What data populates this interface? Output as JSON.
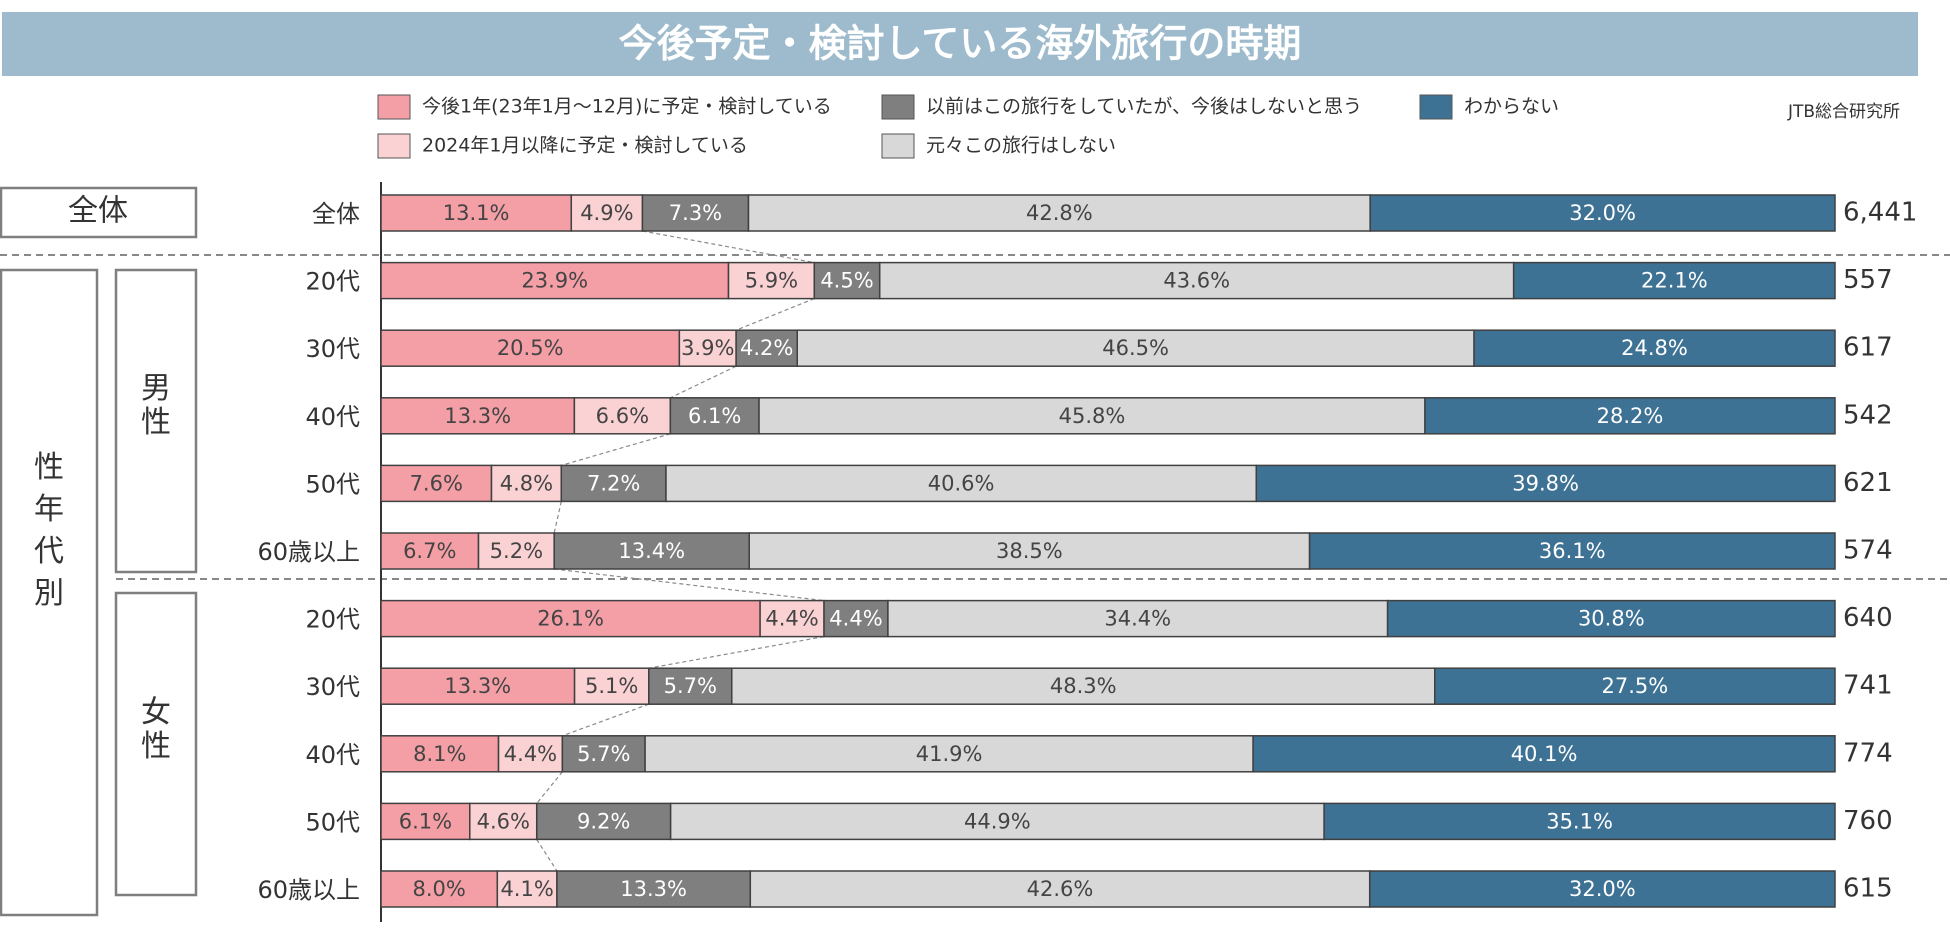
{
  "title": "今後予定・検討している海外旅行の時期",
  "source": "JTB総合研究所",
  "group_labels": {
    "overall": "全体",
    "sex_age": "性年代別",
    "male": "男性",
    "female": "女性"
  },
  "colors": {
    "title_bg": "#9dbbcd",
    "seg1": "#f49ea6",
    "seg2": "#fad2d4",
    "seg3": "#7f7f7f",
    "seg4": "#d8d8d8",
    "seg5": "#3e7295"
  },
  "chart_data": {
    "type": "bar",
    "orientation": "horizontal",
    "stacked": true,
    "normalized": true,
    "unit": "%",
    "title": "今後予定・検討している海外旅行の時期",
    "categories": [
      "全体",
      "20代",
      "30代",
      "40代",
      "50代",
      "60歳以上",
      "20代",
      "30代",
      "40代",
      "50代",
      "60歳以上"
    ],
    "groups": [
      "全体",
      "男性",
      "男性",
      "男性",
      "男性",
      "男性",
      "女性",
      "女性",
      "女性",
      "女性",
      "女性"
    ],
    "sample_sizes": [
      "6,441",
      "557",
      "617",
      "542",
      "621",
      "574",
      "640",
      "741",
      "774",
      "760",
      "615"
    ],
    "legend": [
      "今後1年(23年1月～12月)に予定・検討している",
      "2024年1月以降に予定・検討している",
      "以前はこの旅行をしていたが、今後はしないと思う",
      "元々この旅行はしない",
      "わからない"
    ],
    "series": [
      {
        "name": "今後1年(23年1月～12月)に予定・検討している",
        "values": [
          13.1,
          23.9,
          20.5,
          13.3,
          7.6,
          6.7,
          26.1,
          13.3,
          8.1,
          6.1,
          8.0
        ]
      },
      {
        "name": "2024年1月以降に予定・検討している",
        "values": [
          4.9,
          5.9,
          3.9,
          6.6,
          4.8,
          5.2,
          4.4,
          5.1,
          4.4,
          4.6,
          4.1
        ]
      },
      {
        "name": "以前はこの旅行をしていたが、今後はしないと思う",
        "values": [
          7.3,
          4.5,
          4.2,
          6.1,
          7.2,
          13.4,
          4.4,
          5.7,
          5.7,
          9.2,
          13.3
        ]
      },
      {
        "name": "元々この旅行はしない",
        "values": [
          42.8,
          43.6,
          46.5,
          45.8,
          40.6,
          38.5,
          34.4,
          48.3,
          41.9,
          44.9,
          42.6
        ]
      },
      {
        "name": "わからない",
        "values": [
          32.0,
          22.1,
          24.8,
          28.2,
          39.8,
          36.1,
          30.8,
          27.5,
          40.1,
          35.1,
          32.0
        ]
      }
    ]
  }
}
